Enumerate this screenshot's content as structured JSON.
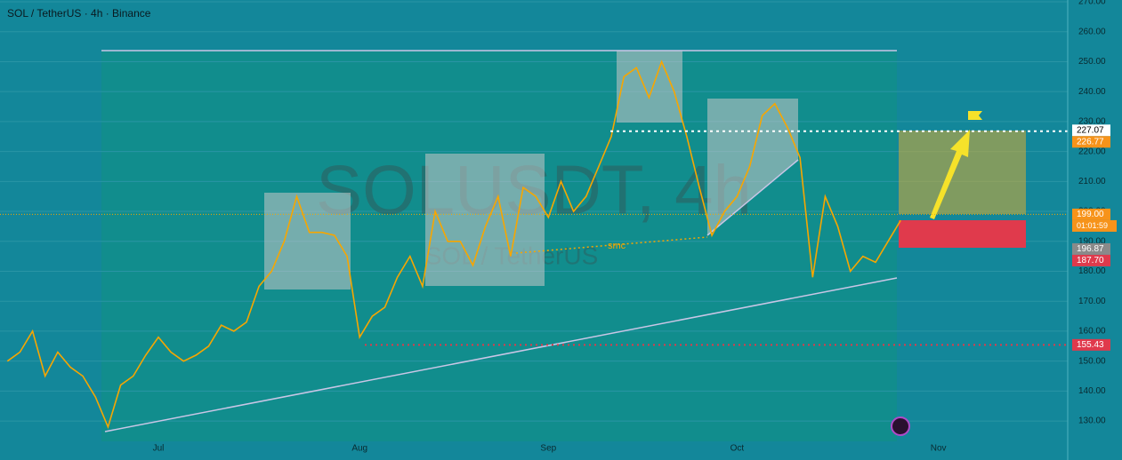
{
  "chart_data": {
    "type": "line",
    "title": "SOL / TetherUS · 4h · Binance",
    "watermark": "SOLUSDT, 4h",
    "watermark_subtitle": "SOL / TetherUS",
    "annotation": "smc",
    "countdown": "01:01:59",
    "categories": [
      null,
      null,
      null,
      null,
      null,
      null,
      null,
      null,
      null,
      null,
      null,
      null,
      "Jul",
      null,
      null,
      null,
      null,
      null,
      null,
      null,
      null,
      null,
      null,
      null,
      null,
      null,
      null,
      null,
      "Aug",
      null,
      null,
      null,
      null,
      null,
      null,
      null,
      null,
      null,
      null,
      null,
      null,
      null,
      null,
      "Sep",
      null,
      null,
      null,
      null,
      null,
      null,
      null,
      null,
      null,
      null,
      null,
      null,
      null,
      null,
      "Oct",
      null,
      null,
      null,
      null,
      null,
      null,
      null,
      null,
      null,
      null,
      null,
      null,
      null,
      null,
      null,
      "Nov"
    ],
    "series": [
      {
        "name": "SOLUSDT",
        "color": "#f7a600",
        "values": [
          150,
          153,
          160,
          145,
          153,
          148,
          145,
          138,
          128,
          142,
          145,
          152,
          158,
          153,
          150,
          152,
          155,
          162,
          160,
          163,
          175,
          180,
          190,
          205,
          193,
          193,
          192,
          185,
          158,
          165,
          168,
          178,
          185,
          175,
          200,
          190,
          190,
          182,
          195,
          205,
          185,
          208,
          205,
          198,
          210,
          200,
          205,
          215,
          225,
          245,
          248,
          238,
          250,
          240,
          225,
          208,
          192,
          200,
          205,
          215,
          232,
          236,
          228,
          218,
          178,
          205,
          195,
          180,
          185,
          183,
          190,
          197,
          null,
          null,
          null
        ]
      }
    ],
    "ylim": [
      123.8,
      270.6
    ],
    "yticks": [
      {
        "value": 130,
        "label": "130.00"
      },
      {
        "value": 140,
        "label": "140.00"
      },
      {
        "value": 150,
        "label": "150.00"
      },
      {
        "value": 160,
        "label": "160.00"
      },
      {
        "value": 170,
        "label": "170.00"
      },
      {
        "value": 180,
        "label": "180.00"
      },
      {
        "value": 190,
        "label": "190.00"
      },
      {
        "value": 200,
        "label": "200.00"
      },
      {
        "value": 210,
        "label": "210.00"
      },
      {
        "value": 220,
        "label": "220.00"
      },
      {
        "value": 230,
        "label": "230.00"
      },
      {
        "value": 240,
        "label": "240.00"
      },
      {
        "value": 250,
        "label": "250.00"
      },
      {
        "value": 260,
        "label": "260.00"
      },
      {
        "value": 270,
        "label": "270.00"
      }
    ],
    "price_labels": [
      {
        "value": 227.07,
        "label": "227.07",
        "color": "#ffffff"
      },
      {
        "value": 226.77,
        "label": "226.77",
        "color": "#f7931a"
      },
      {
        "value": 199,
        "label": "199.00",
        "color": "#f7931a"
      },
      {
        "value": 196.87,
        "label": "196.87",
        "color": "#8a8a8a"
      },
      {
        "value": 187.7,
        "label": "187.70",
        "color": "#e03a4c"
      },
      {
        "value": 155.43,
        "label": "155.43",
        "color": "#e03a4c"
      }
    ],
    "grid": true
  }
}
